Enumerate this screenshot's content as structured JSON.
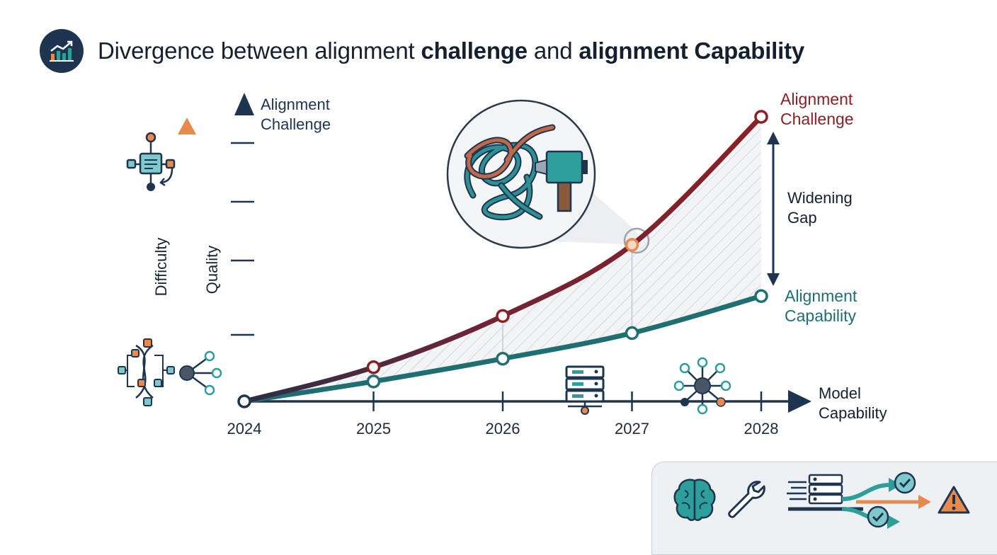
{
  "header": {
    "title_plain_1": "Divergence between alignment ",
    "title_bold_1": "challenge",
    "title_plain_2": " and ",
    "title_bold_2": "alignment Capability",
    "icon": "trend-chart-icon"
  },
  "axes": {
    "y_title_line1": "Alignment",
    "y_title_line2": "Challenge",
    "x_title_line1": "Model",
    "x_title_line2": "Capability",
    "quality_label": "Quality",
    "difficulty_label": "Difficulty"
  },
  "annotations": {
    "gap_line1": "Widening",
    "gap_line2": "Gap",
    "challenge_line1": "Alignment",
    "challenge_line2": "Challenge",
    "capability_line1": "Alignment",
    "capability_line2": "Capability"
  },
  "icons": {
    "magnifier": "tangled-knot-magnifier-icon",
    "server": "server-rack-icon",
    "network": "network-hub-icon",
    "flow": "workflow-diagram-icon",
    "dna": "dna-network-icon",
    "brain": "brain-icon",
    "wrench": "wrench-icon",
    "pipeline": "server-pipeline-icon",
    "check": "check-circle-icon",
    "warning": "warning-triangle-icon"
  },
  "colors": {
    "challenge": "#8b1f24",
    "capability": "#1f6e72",
    "axis": "#1a3550",
    "accent_orange": "#e8894e",
    "teal": "#2e9e9b",
    "navy": "#1e3550"
  },
  "chart_data": {
    "type": "line",
    "categories": [
      "2024",
      "2025",
      "2026",
      "2027",
      "2028"
    ],
    "series": [
      {
        "name": "Alignment Challenge",
        "values": [
          0,
          12,
          30,
          55,
          100
        ]
      },
      {
        "name": "Alignment Capability",
        "values": [
          0,
          7,
          15,
          24,
          37
        ]
      }
    ],
    "xlabel": "Model Capability",
    "ylabel": "Alignment Challenge",
    "ylim": [
      0,
      100
    ],
    "grid": false,
    "fill_between": true,
    "legend": "right, inline labels"
  }
}
